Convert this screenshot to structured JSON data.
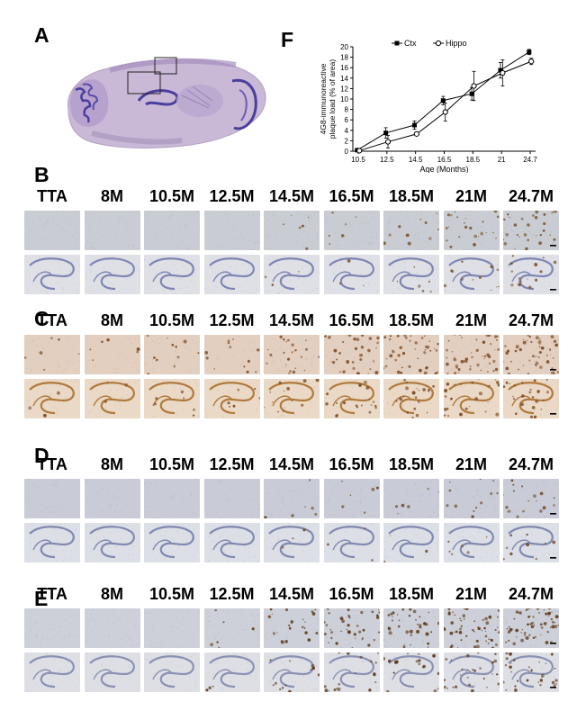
{
  "figure": {
    "panels": {
      "A": "A",
      "B": "B",
      "C": "C",
      "D": "D",
      "E": "E",
      "F": "F"
    },
    "column_labels": [
      "TTA",
      "8M",
      "10.5M",
      "12.5M",
      "14.5M",
      "16.5M",
      "18.5M",
      "21M",
      "24.7M"
    ],
    "stain_rows": [
      {
        "panel": "B",
        "cortex_color": "#c9cdd3",
        "hippo_color": "#dfe0e6",
        "hippo_band": "#7f86b3",
        "dot_color": "#7a5530",
        "plaque_density": [
          0,
          0,
          0,
          0,
          1,
          1,
          2,
          4,
          5
        ]
      },
      {
        "panel": "C",
        "cortex_color": "#e2cfc0",
        "hippo_color": "#ead9c6",
        "hippo_band": "#b07a3d",
        "dot_color": "#7b4a22",
        "plaque_density": [
          1,
          1,
          2,
          2,
          4,
          6,
          7,
          8,
          8
        ]
      },
      {
        "panel": "D",
        "cortex_color": "#c9ccd6",
        "hippo_color": "#dddfe6",
        "hippo_band": "#8089b0",
        "dot_color": "#6d4a2a",
        "plaque_density": [
          0,
          0,
          0,
          0,
          1,
          1,
          1,
          2,
          3
        ]
      },
      {
        "panel": "E",
        "cortex_color": "#cdd0d8",
        "hippo_color": "#dddfe5",
        "hippo_band": "#8a91b2",
        "dot_color": "#5e3a1a",
        "plaque_density": [
          0,
          0,
          0,
          1,
          4,
          6,
          6,
          9,
          10
        ]
      }
    ]
  },
  "chart_data": {
    "type": "line",
    "ylabel": "4G8-immunoreactive plaque load (% of area)",
    "xlabel": "Age (Months)",
    "categories": [
      "10.5",
      "12.5",
      "14.5",
      "16.5",
      "18.5",
      "21",
      "24.7"
    ],
    "ylim": [
      0,
      20
    ],
    "yticks": [
      0,
      2,
      4,
      6,
      8,
      10,
      12,
      14,
      16,
      18,
      20
    ],
    "legend_position": "top",
    "series": [
      {
        "name": "Ctx",
        "marker": "filled-square",
        "values": [
          0.2,
          3.5,
          5.0,
          9.7,
          11.0,
          15.5,
          19.0
        ],
        "errors": [
          0.2,
          1.0,
          0.8,
          0.8,
          1.2,
          1.5,
          0.5
        ]
      },
      {
        "name": "Hippo",
        "marker": "open-circle",
        "values": [
          0.1,
          1.8,
          3.3,
          7.5,
          12.5,
          15.0,
          17.2
        ],
        "errors": [
          0.1,
          1.2,
          0.3,
          1.7,
          2.8,
          2.5,
          0.6
        ]
      }
    ]
  }
}
